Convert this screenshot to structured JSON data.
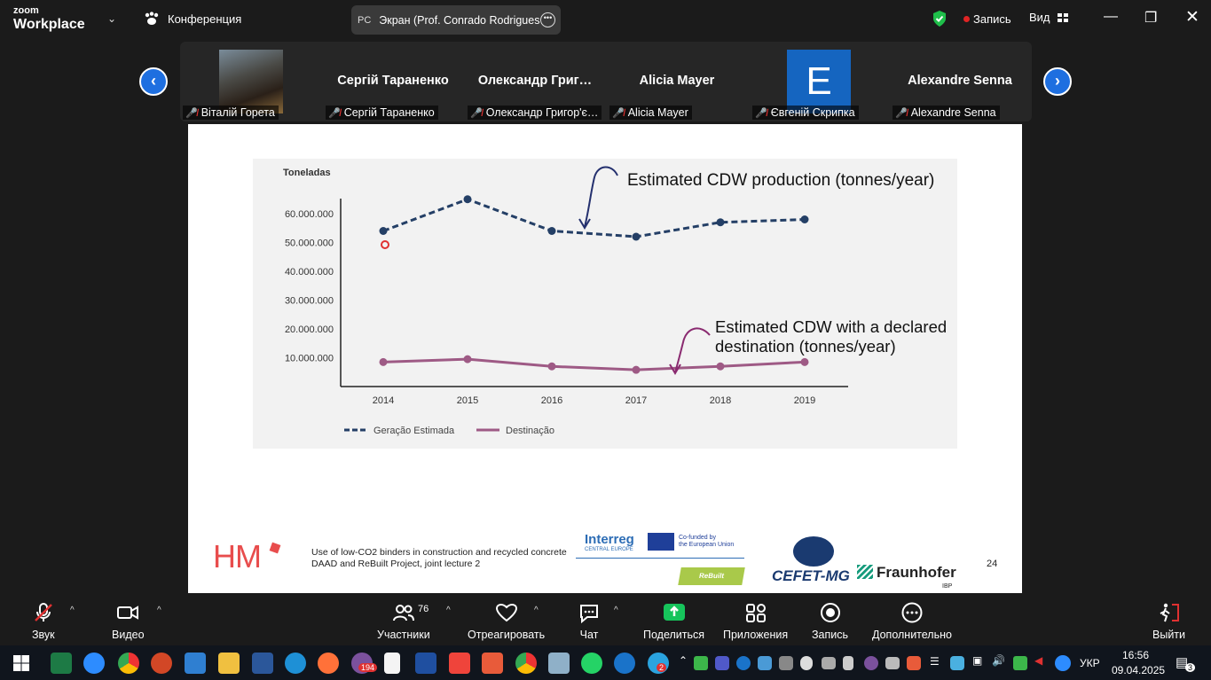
{
  "app": {
    "brand_top": "zoom",
    "brand_bottom": "Workplace",
    "conference_label": "Конференция",
    "share_initials": "PC",
    "share_title": "Экран (Prof. Conrado Rodrigues",
    "record_label": "Запись",
    "view_label": "Вид"
  },
  "participants": [
    {
      "display_name": "",
      "label": "Віталій Горета",
      "type": "photo"
    },
    {
      "display_name": "Сергій Тараненко",
      "label": "Сергій Тараненко",
      "type": "name"
    },
    {
      "display_name": "Олександр  Григ…",
      "label": "Олександр Григор'є…",
      "type": "name"
    },
    {
      "display_name": "Alicia Mayer",
      "label": "Alicia Mayer",
      "type": "name"
    },
    {
      "display_name": "E",
      "label": "Євгеній Скрипка",
      "type": "avatar"
    },
    {
      "display_name": "Alexandre Senna",
      "label": "Alexandre Senna",
      "type": "name"
    }
  ],
  "slide": {
    "annotation_production": "Estimated CDW production (tonnes/year)",
    "annotation_destination_line1": "Estimated CDW with a declared",
    "annotation_destination_line2": "destination (tonnes/year)",
    "footer_logo": "HM",
    "footer_line1": "Use of low-CO2 binders in construction and recycled concrete",
    "footer_line2": "DAAD and ReBuilt Project, joint lecture 2",
    "interreg": "Interreg",
    "interreg_sub": "CENTRAL EUROPE",
    "eu_line1": "Co-funded by",
    "eu_line2": "the European Union",
    "rebuilt": "ReBuilt",
    "cefet": "CEFET-MG",
    "fraunhofer": "Fraunhofer",
    "ibp": "IBP",
    "page_number": "24"
  },
  "chart_data": {
    "type": "line",
    "ylabel": "Toneladas",
    "categories": [
      "2014",
      "2015",
      "2016",
      "2017",
      "2018",
      "2019"
    ],
    "yticks": [
      "10.000.000",
      "20.000.000",
      "30.000.000",
      "40.000.000",
      "50.000.000",
      "60.000.000"
    ],
    "ylim": [
      0,
      65000000
    ],
    "series": [
      {
        "name": "Geração Estimada",
        "color": "#243f66",
        "style": "dashed",
        "values": [
          54000000,
          65000000,
          54000000,
          52000000,
          57000000,
          58000000
        ]
      },
      {
        "name": "Destinação",
        "color": "#9e5a85",
        "style": "solid",
        "values": [
          8500000,
          9500000,
          7000000,
          5800000,
          7000000,
          8500000
        ]
      }
    ],
    "legend": "bottom-left",
    "grid": false
  },
  "toolbar": {
    "audio": "Звук",
    "video": "Видео",
    "participants": "Участники",
    "participants_count": "76",
    "react": "Отреагировать",
    "chat": "Чат",
    "share": "Поделиться",
    "apps": "Приложения",
    "record": "Запись",
    "more": "Дополнительно",
    "leave": "Выйти"
  },
  "taskbar": {
    "apps": [
      "windows-start",
      "excel",
      "zoom",
      "chrome",
      "powerpoint",
      "notepad-s",
      "file-explorer",
      "word",
      "edge",
      "firefox",
      "viber",
      "document",
      "save",
      "anydesk",
      "sublime",
      "chrome-user",
      "archive",
      "whatsapp",
      "webex",
      "telegram"
    ],
    "viber_badge": "194",
    "telegram_badge": "2",
    "language": "УКР",
    "time": "16:56",
    "date": "09.04.2025",
    "notifications": "3"
  }
}
